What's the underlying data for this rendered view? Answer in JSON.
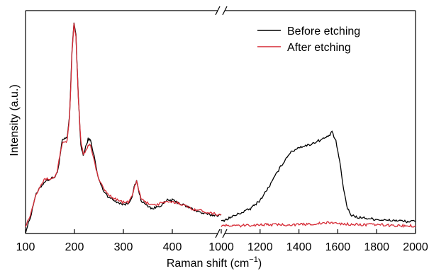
{
  "chart_data": {
    "type": "line",
    "title": "",
    "xlabel": "Raman shift (cm",
    "xlabel_sup": "−1",
    "xlabel_close": ")",
    "ylabel": "Intensity (a.u.)",
    "y_ticks_shown": false,
    "grid": false,
    "broken_axis": true,
    "segments": [
      {
        "xlim": [
          100,
          500
        ],
        "xticks": [
          100,
          200,
          300,
          400
        ]
      },
      {
        "xlim": [
          1000,
          2000
        ],
        "xticks": [
          1000,
          1200,
          1400,
          1600,
          1800,
          2000
        ]
      }
    ],
    "tick_labels": {
      "left": [
        "100",
        "200",
        "300",
        "400"
      ],
      "right": [
        "1000",
        "1200",
        "1400",
        "1600",
        "1800",
        "2000"
      ]
    },
    "ylim": [
      0,
      1
    ],
    "legend": {
      "position": "top-right",
      "entries": [
        "Before etching",
        "After etching"
      ]
    },
    "colors": {
      "before": "#000000",
      "after": "#d62a35",
      "axis": "#000000"
    },
    "series": [
      {
        "name": "Before etching",
        "color": "#000000",
        "points_low": [
          [
            100,
            0.0
          ],
          [
            110,
            0.07
          ],
          [
            120,
            0.17
          ],
          [
            130,
            0.21
          ],
          [
            140,
            0.24
          ],
          [
            150,
            0.25
          ],
          [
            160,
            0.26
          ],
          [
            165,
            0.28
          ],
          [
            170,
            0.35
          ],
          [
            175,
            0.43
          ],
          [
            180,
            0.44
          ],
          [
            185,
            0.44
          ],
          [
            190,
            0.55
          ],
          [
            195,
            0.85
          ],
          [
            199,
            0.99
          ],
          [
            203,
            0.93
          ],
          [
            208,
            0.63
          ],
          [
            213,
            0.41
          ],
          [
            218,
            0.36
          ],
          [
            223,
            0.4
          ],
          [
            228,
            0.44
          ],
          [
            233,
            0.43
          ],
          [
            240,
            0.36
          ],
          [
            248,
            0.26
          ],
          [
            258,
            0.2
          ],
          [
            268,
            0.17
          ],
          [
            280,
            0.15
          ],
          [
            290,
            0.14
          ],
          [
            300,
            0.13
          ],
          [
            310,
            0.135
          ],
          [
            318,
            0.17
          ],
          [
            322,
            0.21
          ],
          [
            327,
            0.24
          ],
          [
            331,
            0.2
          ],
          [
            336,
            0.15
          ],
          [
            345,
            0.13
          ],
          [
            360,
            0.11
          ],
          [
            370,
            0.12
          ],
          [
            380,
            0.13
          ],
          [
            390,
            0.15
          ],
          [
            400,
            0.15
          ],
          [
            410,
            0.14
          ],
          [
            420,
            0.13
          ],
          [
            440,
            0.11
          ],
          [
            460,
            0.09
          ],
          [
            480,
            0.08
          ],
          [
            500,
            0.08
          ]
        ],
        "points_high": [
          [
            1000,
            0.05
          ],
          [
            1050,
            0.07
          ],
          [
            1100,
            0.09
          ],
          [
            1150,
            0.11
          ],
          [
            1200,
            0.15
          ],
          [
            1250,
            0.22
          ],
          [
            1300,
            0.3
          ],
          [
            1350,
            0.37
          ],
          [
            1400,
            0.4
          ],
          [
            1450,
            0.41
          ],
          [
            1500,
            0.43
          ],
          [
            1550,
            0.45
          ],
          [
            1570,
            0.47
          ],
          [
            1590,
            0.43
          ],
          [
            1610,
            0.33
          ],
          [
            1630,
            0.2
          ],
          [
            1650,
            0.11
          ],
          [
            1670,
            0.08
          ],
          [
            1700,
            0.07
          ],
          [
            1750,
            0.065
          ],
          [
            1800,
            0.06
          ],
          [
            1850,
            0.055
          ],
          [
            1900,
            0.055
          ],
          [
            1950,
            0.05
          ],
          [
            2000,
            0.05
          ]
        ]
      },
      {
        "name": "After etching",
        "color": "#d62a35",
        "points_low": [
          [
            100,
            0.03
          ],
          [
            110,
            0.08
          ],
          [
            120,
            0.17
          ],
          [
            130,
            0.22
          ],
          [
            140,
            0.25
          ],
          [
            150,
            0.25
          ],
          [
            160,
            0.26
          ],
          [
            165,
            0.29
          ],
          [
            170,
            0.36
          ],
          [
            175,
            0.42
          ],
          [
            180,
            0.42
          ],
          [
            185,
            0.43
          ],
          [
            190,
            0.54
          ],
          [
            195,
            0.84
          ],
          [
            199,
            0.98
          ],
          [
            203,
            0.92
          ],
          [
            208,
            0.63
          ],
          [
            213,
            0.43
          ],
          [
            218,
            0.37
          ],
          [
            223,
            0.38
          ],
          [
            228,
            0.41
          ],
          [
            233,
            0.41
          ],
          [
            240,
            0.34
          ],
          [
            248,
            0.26
          ],
          [
            258,
            0.21
          ],
          [
            268,
            0.18
          ],
          [
            280,
            0.16
          ],
          [
            290,
            0.15
          ],
          [
            300,
            0.14
          ],
          [
            310,
            0.14
          ],
          [
            318,
            0.17
          ],
          [
            322,
            0.21
          ],
          [
            327,
            0.24
          ],
          [
            331,
            0.2
          ],
          [
            336,
            0.16
          ],
          [
            345,
            0.14
          ],
          [
            360,
            0.13
          ],
          [
            370,
            0.13
          ],
          [
            380,
            0.14
          ],
          [
            390,
            0.14
          ],
          [
            400,
            0.14
          ],
          [
            410,
            0.14
          ],
          [
            420,
            0.13
          ],
          [
            440,
            0.11
          ],
          [
            460,
            0.1
          ],
          [
            480,
            0.09
          ],
          [
            500,
            0.08
          ]
        ],
        "points_high": [
          [
            1000,
            0.03
          ],
          [
            1100,
            0.03
          ],
          [
            1200,
            0.035
          ],
          [
            1300,
            0.035
          ],
          [
            1400,
            0.035
          ],
          [
            1500,
            0.04
          ],
          [
            1570,
            0.045
          ],
          [
            1600,
            0.04
          ],
          [
            1700,
            0.035
          ],
          [
            1800,
            0.035
          ],
          [
            1900,
            0.03
          ],
          [
            2000,
            0.03
          ]
        ]
      }
    ]
  }
}
